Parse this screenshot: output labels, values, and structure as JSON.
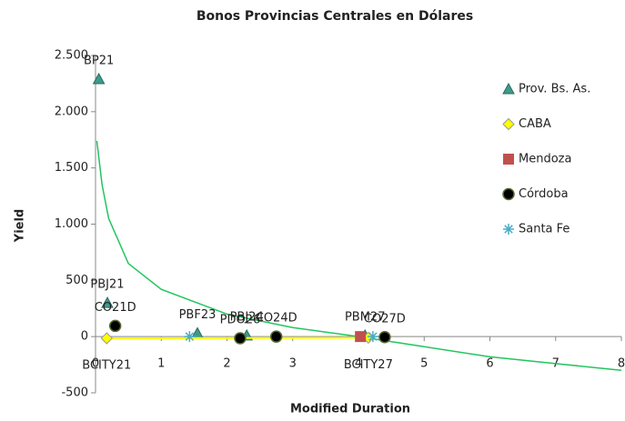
{
  "chart_data": {
    "type": "scatter",
    "title": "Bonos Provincias Centrales en Dólares",
    "xlabel": "Modified Duration",
    "ylabel": "Yield",
    "xlim": [
      0,
      8
    ],
    "xticks": [
      0,
      1,
      2,
      3,
      4,
      5,
      6,
      7,
      8
    ],
    "ylim": [
      -500,
      2500
    ],
    "yticks": [
      -500,
      0,
      500,
      {
        "value": 1000,
        "label": "1.000"
      },
      {
        "value": 1500,
        "label": "1.500"
      },
      {
        "value": 2000,
        "label": "2.000"
      },
      {
        "value": 2500,
        "label": "2.500"
      }
    ],
    "grid": false,
    "legend": "right",
    "series": [
      {
        "name": "Prov. Bs. As.",
        "color": "#3f9a8c",
        "marker": "triangle",
        "x": [
          0.05,
          0.18,
          1.55,
          2.3,
          4.1
        ],
        "values": [
          2290,
          300,
          30,
          10,
          10
        ],
        "labels": [
          "BP21",
          "PBJ21",
          "PBF23",
          "PBJ24",
          "PBM27"
        ]
      },
      {
        "name": "CABA",
        "color": "#ffff00",
        "marker": "diamond",
        "line": true,
        "x": [
          0.17,
          4.15
        ],
        "values": [
          -15,
          -10
        ],
        "labels": [
          "BCITY21",
          "BCITY27"
        ]
      },
      {
        "name": "Mendoza",
        "color": "#c0504d",
        "marker": "square",
        "x": [
          4.03
        ],
        "values": [
          0
        ],
        "labels": [
          null
        ]
      },
      {
        "name": "Córdoba",
        "color": "#000000",
        "marker": "circle",
        "x": [
          0.3,
          2.2,
          2.75,
          4.4
        ],
        "values": [
          95,
          -15,
          0,
          -5
        ],
        "labels": [
          "CO21D",
          "PDO26",
          "CO24D",
          "CO27D"
        ]
      },
      {
        "name": "Santa Fe",
        "color": "#4bacc6",
        "marker": "star",
        "x": [
          1.43,
          4.22
        ],
        "values": [
          0,
          0
        ],
        "labels": [
          null,
          null
        ]
      }
    ],
    "trendline": {
      "color": "#22c55e",
      "x": [
        0.02,
        0.1,
        0.2,
        0.5,
        1,
        2,
        3,
        4,
        5,
        6,
        7,
        8
      ],
      "values": [
        1740,
        1350,
        1050,
        650,
        420,
        200,
        80,
        0,
        -90,
        -180,
        -240,
        -300
      ]
    }
  }
}
